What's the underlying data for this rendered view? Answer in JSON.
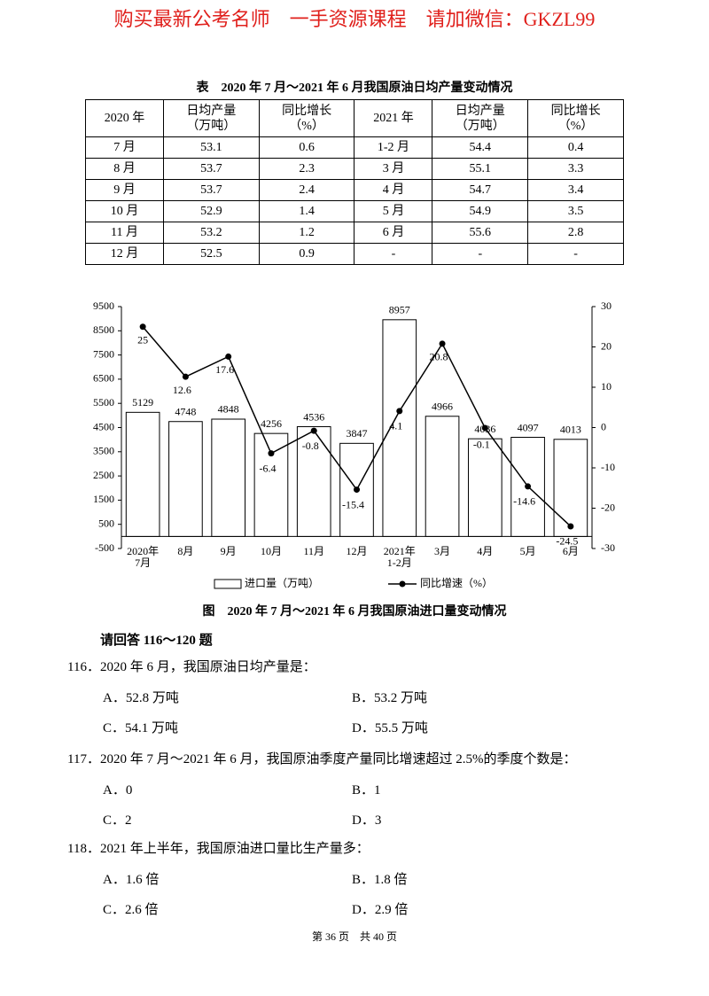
{
  "header": {
    "watermark": "购买最新公考名师　一手资源课程　请加微信：GKZL99"
  },
  "table": {
    "title": "表　2020 年 7 月～2021 年 6 月我国原油日均产量变动情况",
    "headers": [
      "2020 年",
      "日均产量\n（万吨）",
      "同比增长\n（%）",
      "2021 年",
      "日均产量\n（万吨）",
      "同比增长\n（%）"
    ],
    "rows": [
      [
        "7 月",
        "53.1",
        "0.6",
        "1-2 月",
        "54.4",
        "0.4"
      ],
      [
        "8 月",
        "53.7",
        "2.3",
        "3 月",
        "55.1",
        "3.3"
      ],
      [
        "9 月",
        "53.7",
        "2.4",
        "4 月",
        "54.7",
        "3.4"
      ],
      [
        "10 月",
        "52.9",
        "1.4",
        "5 月",
        "54.9",
        "3.5"
      ],
      [
        "11 月",
        "53.2",
        "1.2",
        "6 月",
        "55.6",
        "2.8"
      ],
      [
        "12 月",
        "52.5",
        "0.9",
        "-",
        "-",
        "-"
      ]
    ]
  },
  "chart_data": {
    "type": "bar",
    "title": "图　2020 年 7 月～2021 年 6 月我国原油进口量变动情况",
    "categories": [
      "2020年\n7月",
      "8月",
      "9月",
      "10月",
      "11月",
      "12月",
      "2021年\n1-2月",
      "3月",
      "4月",
      "5月",
      "6月"
    ],
    "series": [
      {
        "name": "进口量（万吨）",
        "type": "bar",
        "color": "#ffffff",
        "values": [
          5129,
          4748,
          4848,
          4256,
          4536,
          3847,
          8957,
          4966,
          4036,
          4097,
          4013
        ]
      },
      {
        "name": "同比增速（%）",
        "type": "line",
        "axis": "y2",
        "color": "#000000",
        "values": [
          25,
          12.6,
          17.6,
          -6.4,
          -0.8,
          -15.4,
          4.1,
          20.8,
          -0.1,
          -14.6,
          -24.5
        ]
      }
    ],
    "ylim": [
      -500,
      9500
    ],
    "yticks": [
      -500,
      500,
      1500,
      2500,
      3500,
      4500,
      5500,
      6500,
      7500,
      8500,
      9500
    ],
    "y2lim": [
      -30,
      30
    ],
    "y2ticks": [
      -30,
      -20,
      -10,
      0,
      10,
      20,
      30
    ]
  },
  "questions": {
    "intro": "请回答 116～120 题",
    "items": [
      {
        "text": "116．2020 年 6 月，我国原油日均产量是：",
        "options": [
          "A．52.8 万吨",
          "B．53.2 万吨",
          "C．54.1 万吨",
          "D．55.5 万吨"
        ]
      },
      {
        "text": "117．2020 年 7 月～2021 年 6 月，我国原油季度产量同比增速超过 2.5%的季度个数是：",
        "options": [
          "A．0",
          "B．1",
          "C．2",
          "D．3"
        ]
      },
      {
        "text": "118．2021 年上半年，我国原油进口量比生产量多：",
        "options": [
          "A．1.6 倍",
          "B．1.8 倍",
          "C．2.6 倍",
          "D．2.9 倍"
        ]
      }
    ]
  },
  "footer": {
    "page": "第 36 页　共 40 页"
  }
}
